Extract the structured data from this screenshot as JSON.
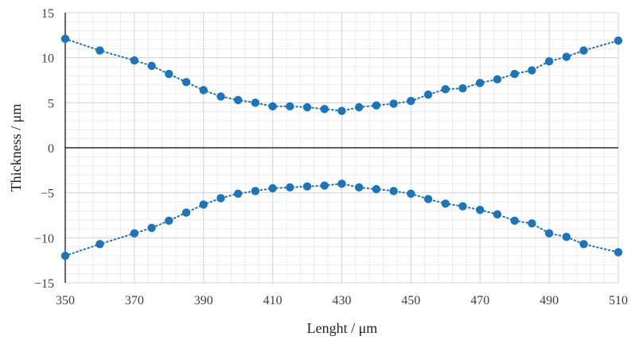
{
  "chart_data": {
    "type": "scatter",
    "title": "",
    "xlabel": "Lenght / μm",
    "ylabel": "Thickness / μm",
    "xlim": [
      350,
      510
    ],
    "ylim": [
      -15,
      15
    ],
    "x_ticks": [
      350,
      370,
      390,
      410,
      430,
      450,
      470,
      490,
      510
    ],
    "y_ticks": [
      15,
      10,
      5,
      0,
      -5,
      -10,
      -15
    ],
    "x_tick_labels": [
      "350",
      "370",
      "390",
      "410",
      "430",
      "450",
      "470",
      "490",
      "510"
    ],
    "y_tick_labels": [
      "15",
      "10",
      "5",
      "0",
      "−5",
      "−10",
      "−15"
    ],
    "grid": true,
    "minor_grid": true,
    "legend": "none",
    "marker_color": "#1a75bc",
    "line_style": "dotted",
    "series": [
      {
        "x": [
          350,
          360,
          370,
          375,
          380,
          385,
          390,
          395,
          400,
          405,
          410,
          415,
          420,
          425,
          430,
          435,
          440,
          445,
          450,
          455,
          460,
          465,
          470,
          475,
          480,
          485,
          490,
          495,
          500,
          510
        ],
        "y": [
          12.1,
          10.8,
          9.7,
          9.1,
          8.2,
          7.3,
          6.4,
          5.7,
          5.3,
          5.0,
          4.6,
          4.6,
          4.5,
          4.3,
          4.1,
          4.5,
          4.7,
          4.9,
          5.2,
          5.9,
          6.5,
          6.6,
          7.2,
          7.6,
          8.2,
          8.6,
          9.6,
          10.1,
          10.8,
          11.9
        ]
      },
      {
        "x": [
          350,
          360,
          370,
          375,
          380,
          385,
          390,
          395,
          400,
          405,
          410,
          415,
          420,
          425,
          430,
          435,
          440,
          445,
          450,
          455,
          460,
          465,
          470,
          475,
          480,
          485,
          490,
          495,
          500,
          510
        ],
        "y": [
          -12.0,
          -10.7,
          -9.5,
          -8.9,
          -8.1,
          -7.2,
          -6.3,
          -5.6,
          -5.1,
          -4.8,
          -4.5,
          -4.4,
          -4.3,
          -4.2,
          -4.0,
          -4.4,
          -4.6,
          -4.8,
          -5.1,
          -5.7,
          -6.2,
          -6.5,
          -6.9,
          -7.4,
          -8.1,
          -8.4,
          -9.5,
          -9.9,
          -10.7,
          -11.6
        ]
      }
    ]
  }
}
